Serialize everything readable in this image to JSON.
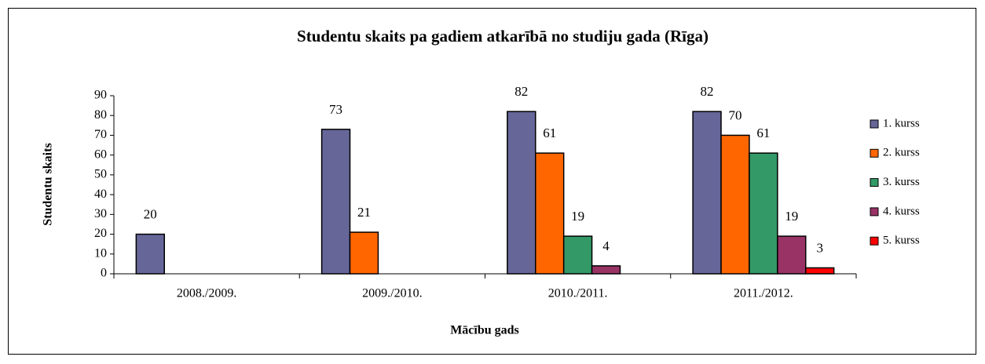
{
  "chart_data": {
    "type": "bar",
    "title": "Studentu skaits pa gadiem atkarībā no studiju  gada (Rīga)",
    "x_label": "Mācību gads",
    "y_label": "Studentu skaits",
    "categories": [
      "2008./2009.",
      "2009./2010.",
      "2010./2011.",
      "2011./2012."
    ],
    "series": [
      {
        "name": "1. kurss",
        "color": "#666699",
        "values": [
          20,
          73,
          82,
          82
        ]
      },
      {
        "name": "2. kurss",
        "color": "#ff6600",
        "values": [
          null,
          21,
          61,
          70
        ]
      },
      {
        "name": "3. kurss",
        "color": "#339966",
        "values": [
          null,
          null,
          19,
          61
        ]
      },
      {
        "name": "4. kurss",
        "color": "#993366",
        "values": [
          null,
          null,
          4,
          19
        ]
      },
      {
        "name": "5. kurss",
        "color": "#ff0000",
        "values": [
          null,
          null,
          null,
          3
        ]
      }
    ],
    "ylim": [
      0,
      90
    ],
    "yticks": [
      0,
      10,
      20,
      30,
      40,
      50,
      60,
      70,
      80,
      90
    ],
    "legend": "right"
  }
}
